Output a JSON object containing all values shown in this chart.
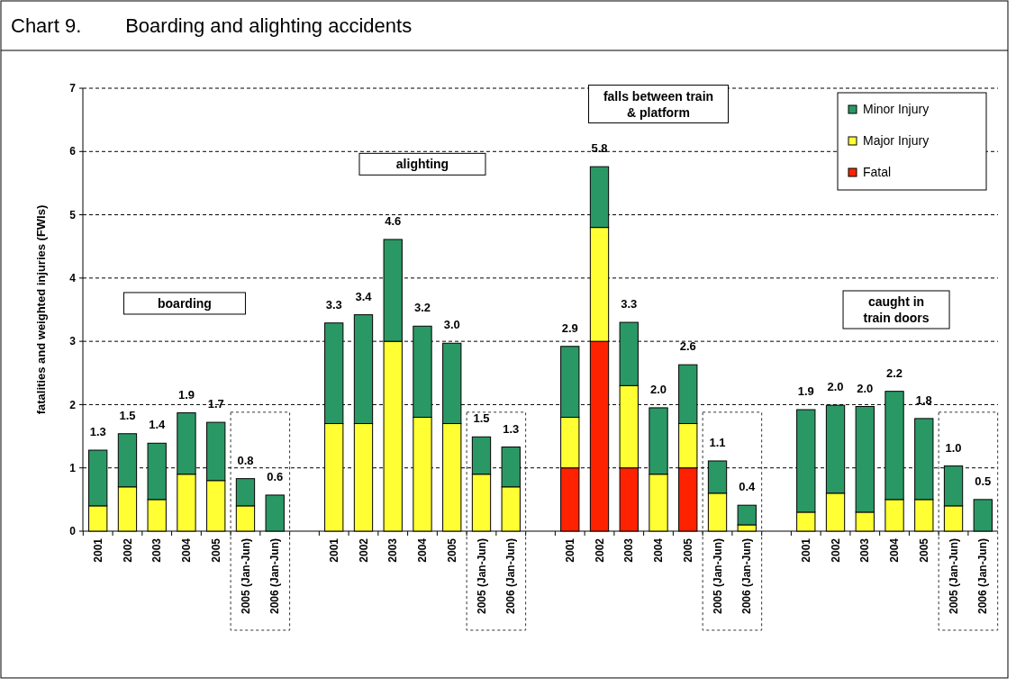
{
  "chart_data": {
    "type": "bar",
    "title": "Chart 9.        Boarding and alighting accidents",
    "ylabel": "fatalities and weighted injuries (FWIs)",
    "categories": [
      "2001",
      "2002",
      "2003",
      "2004",
      "2005",
      "2005 (Jan-Jun)",
      "2006 (Jan-Jun)",
      null,
      "2001",
      "2002",
      "2003",
      "2004",
      "2005",
      "2005 (Jan-Jun)",
      "2006 (Jan-Jun)",
      null,
      "2001",
      "2002",
      "2003",
      "2004",
      "2005",
      "2005 (Jan-Jun)",
      "2006 (Jan-Jun)",
      null,
      "2001",
      "2002",
      "2003",
      "2004",
      "2005",
      "2005 (Jan-Jun)",
      "2006 (Jan-Jun)"
    ],
    "stacked": true,
    "series": [
      {
        "name": "Fatal",
        "color": "#ff2200",
        "values": [
          0,
          0,
          0,
          0,
          0,
          0,
          0,
          null,
          0,
          0,
          0,
          0,
          0,
          0,
          0,
          null,
          1,
          3,
          1,
          0,
          1,
          0,
          0,
          null,
          0,
          0,
          0,
          0,
          0,
          0,
          0
        ]
      },
      {
        "name": "Major Injury",
        "color": "#ffff33",
        "values": [
          0.4,
          0.7,
          0.5,
          0.9,
          0.8,
          0.4,
          0,
          null,
          1.7,
          1.7,
          3.0,
          1.8,
          1.7,
          0.9,
          0.7,
          null,
          0.8,
          1.8,
          1.3,
          0.9,
          0.7,
          0.6,
          0.1,
          null,
          0.3,
          0.6,
          0.3,
          0.5,
          0.5,
          0.4,
          0
        ]
      },
      {
        "name": "Minor Injury",
        "color": "#2a9865",
        "values": [
          0.88,
          0.84,
          0.89,
          0.97,
          0.92,
          0.43,
          0.57,
          null,
          1.59,
          1.72,
          1.61,
          1.44,
          1.27,
          0.59,
          0.63,
          null,
          1.12,
          0.96,
          1.0,
          1.05,
          0.93,
          0.51,
          0.31,
          null,
          1.62,
          1.39,
          1.67,
          1.71,
          1.28,
          0.63,
          0.5
        ]
      }
    ],
    "totals": [
      "1.3",
      "1.5",
      "1.4",
      "1.9",
      "1.7",
      "0.8",
      "0.6",
      null,
      "3.3",
      "3.4",
      "4.6",
      "3.2",
      "3.0",
      "1.5",
      "1.3",
      null,
      "2.9",
      "5.8",
      "3.3",
      "2.0",
      "2.6",
      "1.1",
      "0.4",
      null,
      "1.9",
      "2.0",
      "2.0",
      "2.2",
      "1.8",
      "1.0",
      "0.5"
    ],
    "ylim": [
      0,
      7
    ],
    "yticks": [
      0,
      1,
      2,
      3,
      4,
      5,
      6,
      7
    ],
    "grid": "y",
    "legend": "top right",
    "annotations": [
      "boarding",
      "alighting",
      "falls between train & platform",
      "caught in train doors"
    ]
  }
}
